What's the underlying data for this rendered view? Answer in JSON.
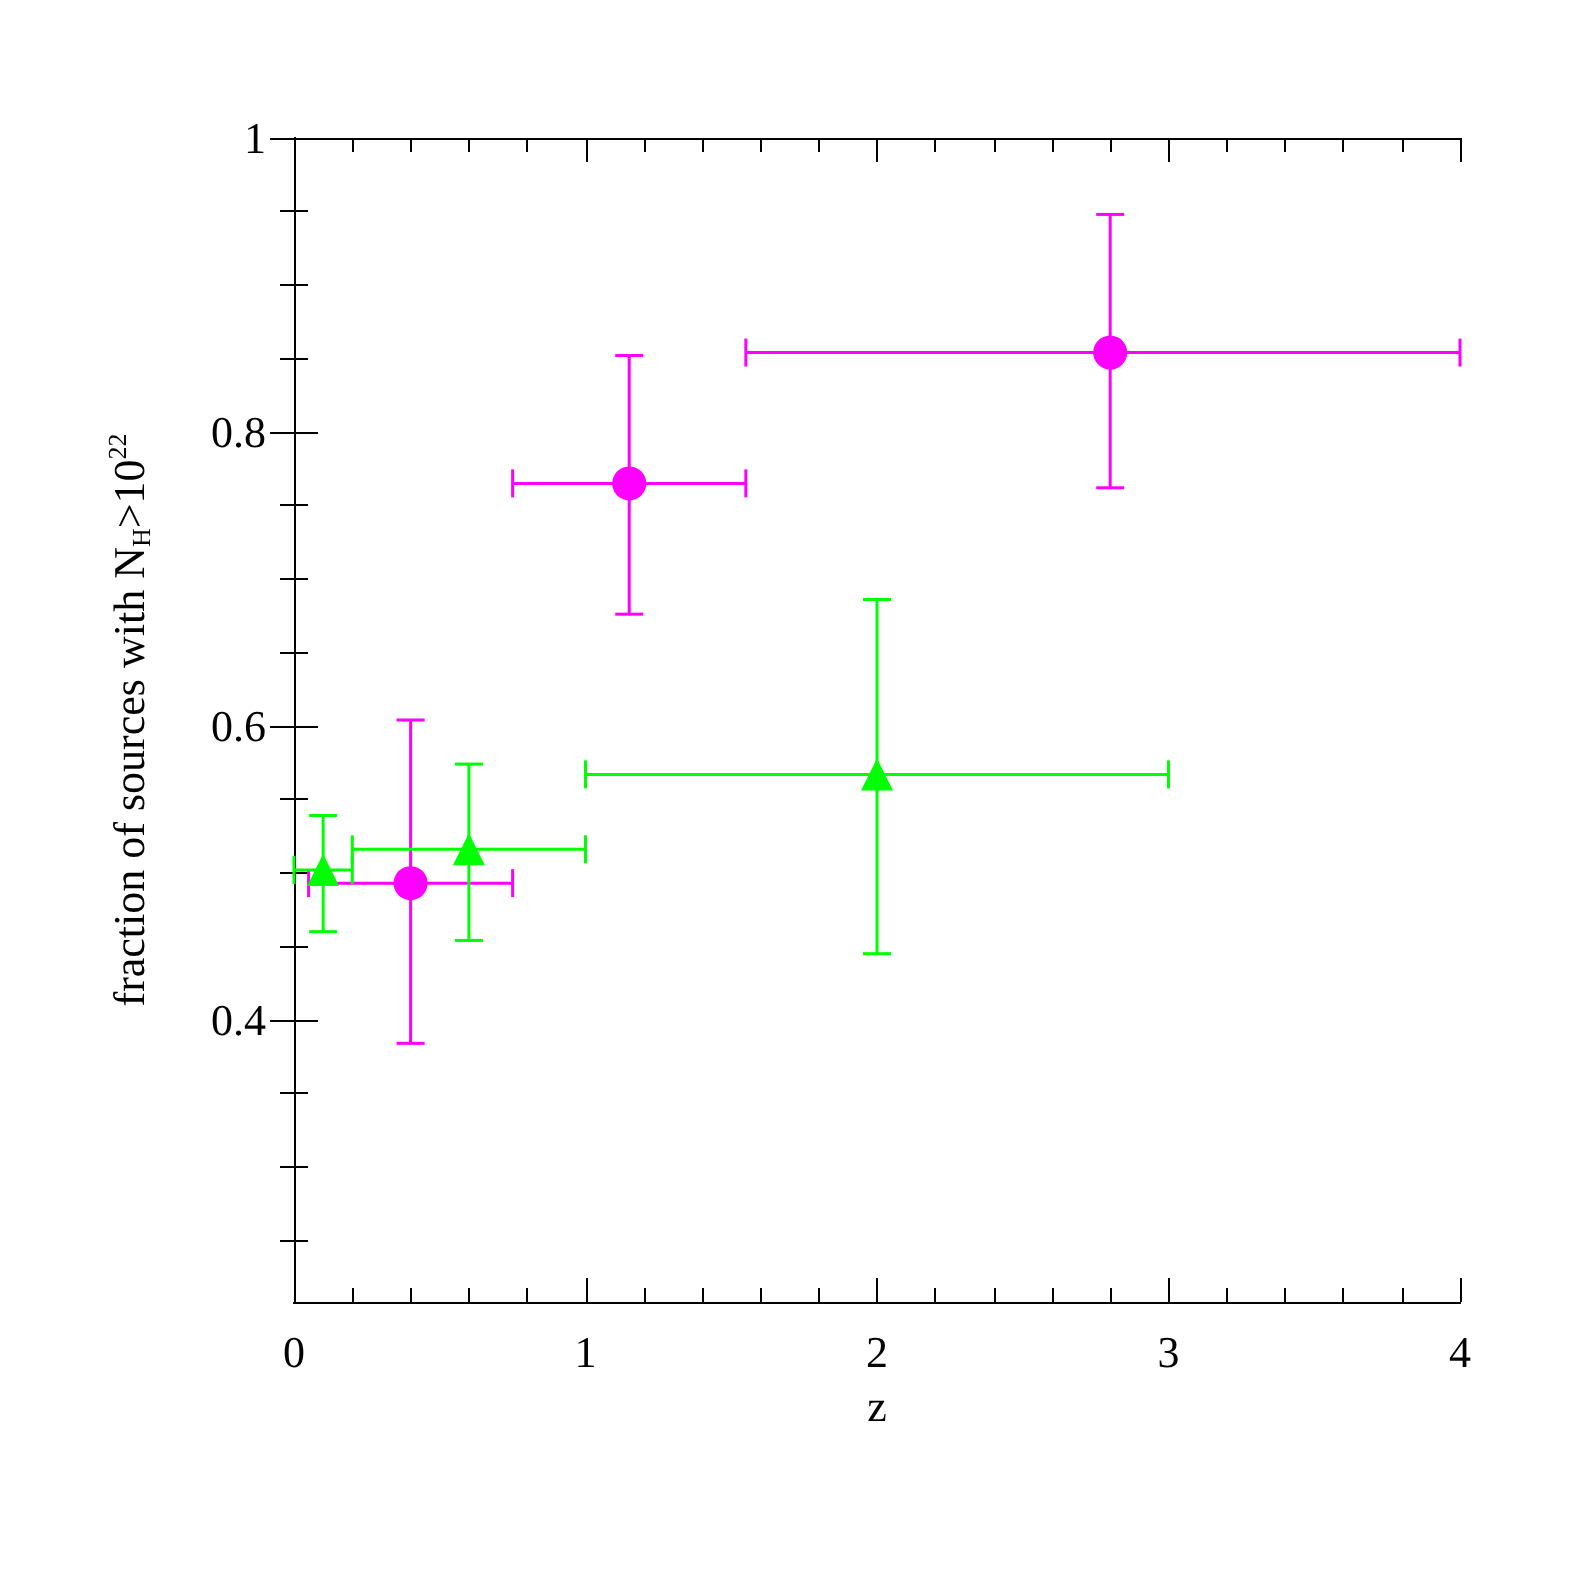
{
  "chart_data": {
    "type": "scatter",
    "xlabel": "z",
    "ylabel": "fraction of sources with N$_{H}$>10$^{22}$",
    "xlim": [
      0,
      4
    ],
    "ylim": [
      0.208,
      1
    ],
    "xticks": [
      0,
      {
        "value": 0.2,
        "label": null
      },
      {
        "value": 0.4,
        "label": null
      },
      {
        "value": 0.6,
        "label": null
      },
      {
        "value": 0.8,
        "label": null
      },
      1,
      {
        "value": 1.2,
        "label": null
      },
      {
        "value": 1.4,
        "label": null
      },
      {
        "value": 1.6,
        "label": null
      },
      {
        "value": 1.8,
        "label": null
      },
      2,
      {
        "value": 2.2,
        "label": null
      },
      {
        "value": 2.4,
        "label": null
      },
      {
        "value": 2.6,
        "label": null
      },
      {
        "value": 2.8,
        "label": null
      },
      3,
      {
        "value": 3.2,
        "label": null
      },
      {
        "value": 3.4,
        "label": null
      },
      {
        "value": 3.6,
        "label": null
      },
      {
        "value": 3.8,
        "label": null
      },
      4
    ],
    "yticks": [
      {
        "value": 0.25,
        "label": null
      },
      {
        "value": 0.3,
        "label": null
      },
      {
        "value": 0.35,
        "label": null
      },
      0.4,
      {
        "value": 0.45,
        "label": null
      },
      {
        "value": 0.5,
        "label": null
      },
      {
        "value": 0.55,
        "label": null
      },
      0.6,
      {
        "value": 0.65,
        "label": null
      },
      {
        "value": 0.7,
        "label": null
      },
      {
        "value": 0.75,
        "label": null
      },
      0.8,
      {
        "value": 0.85,
        "label": null
      },
      {
        "value": 0.9,
        "label": null
      },
      {
        "value": 0.95,
        "label": null
      },
      1
    ],
    "series": [
      {
        "color": "#ff00ff",
        "marker": "circle",
        "x": [
          0.4,
          1.15,
          2.8
        ],
        "values": [
          0.493,
          0.765,
          0.854
        ],
        "errors": [
          [
            0.384,
            0.604
          ],
          [
            0.676,
            0.852
          ],
          [
            0.762,
            0.948
          ]
        ],
        "xerrors": [
          [
            0.05,
            0.75
          ],
          [
            0.75,
            1.55
          ],
          [
            1.55,
            4
          ]
        ]
      },
      {
        "color": "#00ff00",
        "marker": "triangle",
        "x": [
          0.1,
          0.6,
          2.0
        ],
        "values": [
          0.502,
          0.516,
          0.567
        ],
        "errors": [
          [
            0.46,
            0.539
          ],
          [
            0.454,
            0.574
          ],
          [
            0.445,
            0.686
          ]
        ],
        "xerrors": [
          [
            0,
            0.2
          ],
          [
            0.2,
            1
          ],
          [
            1,
            3
          ]
        ]
      }
    ]
  }
}
